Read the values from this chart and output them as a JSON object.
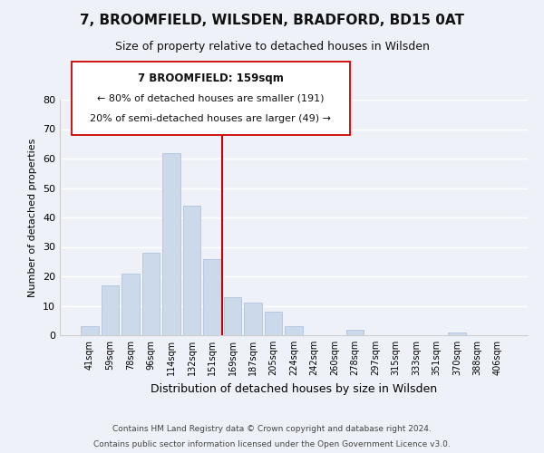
{
  "title": "7, BROOMFIELD, WILSDEN, BRADFORD, BD15 0AT",
  "subtitle": "Size of property relative to detached houses in Wilsden",
  "xlabel": "Distribution of detached houses by size in Wilsden",
  "ylabel": "Number of detached properties",
  "bar_color": "#ccd9ea",
  "bar_edge_color": "#b0c4de",
  "categories": [
    "41sqm",
    "59sqm",
    "78sqm",
    "96sqm",
    "114sqm",
    "132sqm",
    "151sqm",
    "169sqm",
    "187sqm",
    "205sqm",
    "224sqm",
    "242sqm",
    "260sqm",
    "278sqm",
    "297sqm",
    "315sqm",
    "333sqm",
    "351sqm",
    "370sqm",
    "388sqm",
    "406sqm"
  ],
  "values": [
    3,
    17,
    21,
    28,
    62,
    44,
    26,
    13,
    11,
    8,
    3,
    0,
    0,
    2,
    0,
    0,
    0,
    0,
    1,
    0,
    0
  ],
  "ylim": [
    0,
    80
  ],
  "yticks": [
    0,
    10,
    20,
    30,
    40,
    50,
    60,
    70,
    80
  ],
  "vline_x": 6.5,
  "vline_color": "#cc0000",
  "annotation_title": "7 BROOMFIELD: 159sqm",
  "annotation_line1": "← 80% of detached houses are smaller (191)",
  "annotation_line2": "20% of semi-detached houses are larger (49) →",
  "footer1": "Contains HM Land Registry data © Crown copyright and database right 2024.",
  "footer2": "Contains public sector information licensed under the Open Government Licence v3.0.",
  "background_color": "#eef2f8",
  "grid_color": "#ffffff",
  "title_fontsize": 11,
  "subtitle_fontsize": 9
}
